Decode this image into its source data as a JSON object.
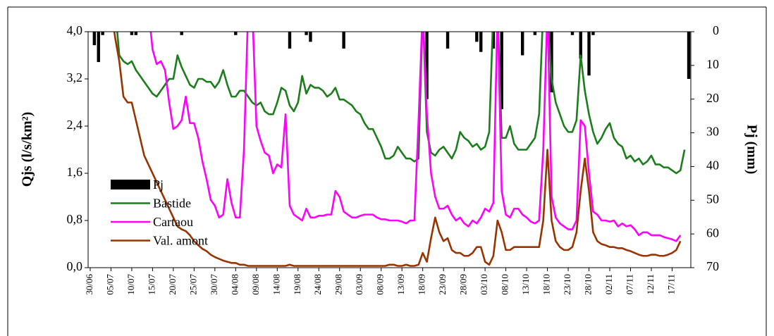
{
  "chart_data": {
    "type": "line",
    "y_label": "Qjs (l/s/km²)",
    "y2_label": "Pj (mm)",
    "categories": [
      "30/06",
      null,
      null,
      null,
      null,
      "05/07",
      null,
      null,
      null,
      null,
      "10/07",
      null,
      null,
      null,
      null,
      "15/07",
      null,
      null,
      null,
      null,
      "20/07",
      null,
      null,
      null,
      null,
      "25/07",
      null,
      null,
      null,
      null,
      "30/07",
      null,
      null,
      null,
      null,
      "04/08",
      null,
      null,
      null,
      null,
      "09/08",
      null,
      null,
      null,
      null,
      "14/08",
      null,
      null,
      null,
      null,
      "19/08",
      null,
      null,
      null,
      null,
      "24/08",
      null,
      null,
      null,
      null,
      "29/08",
      null,
      null,
      null,
      null,
      "03/09",
      null,
      null,
      null,
      null,
      "08/09",
      null,
      null,
      null,
      null,
      "13/09",
      null,
      null,
      null,
      null,
      "18/09",
      null,
      null,
      null,
      null,
      "23/09",
      null,
      null,
      null,
      null,
      "28/09",
      null,
      null,
      null,
      null,
      "03/10",
      null,
      null,
      null,
      null,
      "08/10",
      null,
      null,
      null,
      null,
      "13/10",
      null,
      null,
      null,
      null,
      "18/10",
      null,
      null,
      null,
      null,
      "23/10",
      null,
      null,
      null,
      null,
      "28/10",
      null,
      null,
      null,
      null,
      "02/11",
      null,
      null,
      null,
      null,
      "07/11",
      null,
      null,
      null,
      null,
      "12/11",
      null,
      null,
      null,
      null,
      "17/11",
      null,
      null,
      null,
      null
    ],
    "series": [
      {
        "name": "Pj",
        "type": "bar",
        "axis": "y2",
        "color": "#000000",
        "values": [
          0,
          4,
          9,
          1,
          0,
          0,
          0,
          0,
          0,
          0,
          1,
          1,
          0,
          0,
          0,
          0,
          0,
          0,
          0,
          0,
          0,
          0,
          1,
          0,
          0,
          0,
          0,
          0,
          0,
          0,
          0,
          0,
          0,
          0,
          0,
          1,
          0,
          0,
          0,
          0,
          0,
          0,
          0,
          0,
          0,
          0,
          0,
          0,
          5,
          0,
          0,
          0,
          1,
          3,
          0,
          0,
          0,
          0,
          0,
          0,
          0,
          5,
          0,
          0,
          0,
          0,
          0,
          0,
          0,
          0,
          0,
          0,
          0,
          0,
          0,
          0,
          0,
          0,
          0,
          0,
          0,
          20,
          0,
          0,
          0,
          0,
          5,
          0,
          0,
          0,
          0,
          0,
          0,
          3,
          6,
          0,
          0,
          5,
          0,
          23,
          0,
          0,
          0,
          0,
          7,
          0,
          0,
          1,
          0,
          0,
          0,
          18,
          0,
          0,
          0,
          0,
          1,
          0,
          8,
          0,
          13,
          1,
          0,
          0,
          0,
          0,
          0,
          0,
          0,
          0,
          0,
          0,
          0,
          0,
          0,
          0,
          0,
          0,
          0,
          0,
          0,
          0,
          0,
          0,
          14
        ]
      },
      {
        "name": "Bastide",
        "type": "line",
        "color": "#1b7d1b",
        "values": [
          4.4,
          4.4,
          4.4,
          4.4,
          4.4,
          4.4,
          4.4,
          3.6,
          3.5,
          3.45,
          3.5,
          3.35,
          3.25,
          3.15,
          3.05,
          2.95,
          2.9,
          3.0,
          3.1,
          3.2,
          3.2,
          3.6,
          3.4,
          3.25,
          3.1,
          3.05,
          3.2,
          3.2,
          3.15,
          3.15,
          3.05,
          3.15,
          3.35,
          3.1,
          2.9,
          2.9,
          3.0,
          3.0,
          2.9,
          2.8,
          2.75,
          2.8,
          2.65,
          2.6,
          2.6,
          2.8,
          3.05,
          3.0,
          2.75,
          2.65,
          2.8,
          3.25,
          2.95,
          3.1,
          3.05,
          3.05,
          3.0,
          2.9,
          2.95,
          3.05,
          2.85,
          2.85,
          2.8,
          2.75,
          2.65,
          2.6,
          2.45,
          2.35,
          2.35,
          2.2,
          2.05,
          1.85,
          1.85,
          1.9,
          2.05,
          1.95,
          1.85,
          1.85,
          1.8,
          1.85,
          4.4,
          2.3,
          1.95,
          1.9,
          2.0,
          2.05,
          1.95,
          1.85,
          2.0,
          2.3,
          2.2,
          2.15,
          2.05,
          2.1,
          2.0,
          2.05,
          2.3,
          4.4,
          4.4,
          2.2,
          2.2,
          2.4,
          2.1,
          2.0,
          2.0,
          2.0,
          2.1,
          2.2,
          2.6,
          4.4,
          4.4,
          3.2,
          2.8,
          2.6,
          2.4,
          2.3,
          2.3,
          2.5,
          3.6,
          3.0,
          2.6,
          2.3,
          2.1,
          2.2,
          2.35,
          2.45,
          2.2,
          2.1,
          2.05,
          1.85,
          1.9,
          1.8,
          1.85,
          1.75,
          1.8,
          1.9,
          1.75,
          1.75,
          1.7,
          1.7,
          1.65,
          1.6,
          1.65,
          2.0,
          null
        ]
      },
      {
        "name": "Cartaou",
        "type": "line",
        "color": "#ff00ff",
        "values": [
          4.4,
          4.4,
          4.4,
          4.4,
          4.4,
          4.4,
          4.4,
          4.4,
          4.4,
          4.4,
          4.4,
          4.4,
          4.4,
          4.4,
          4.4,
          3.7,
          3.45,
          3.5,
          3.35,
          2.8,
          2.35,
          2.4,
          2.5,
          2.9,
          2.45,
          2.45,
          2.2,
          1.8,
          1.5,
          1.15,
          1.05,
          0.85,
          0.9,
          1.5,
          1.1,
          0.85,
          0.85,
          2.0,
          4.4,
          4.4,
          2.4,
          2.15,
          1.95,
          1.9,
          1.6,
          1.75,
          1.7,
          2.6,
          1.05,
          0.9,
          0.85,
          0.8,
          1.0,
          0.85,
          0.85,
          0.88,
          0.88,
          0.9,
          0.9,
          1.3,
          1.2,
          0.95,
          0.9,
          0.85,
          0.85,
          0.88,
          0.9,
          0.9,
          0.9,
          0.85,
          0.82,
          0.82,
          0.8,
          0.8,
          0.8,
          0.78,
          0.75,
          0.8,
          0.8,
          2.5,
          4.4,
          2.6,
          1.6,
          1.2,
          1.0,
          1.0,
          1.05,
          0.9,
          0.8,
          0.85,
          0.75,
          0.7,
          0.8,
          0.75,
          0.85,
          1.0,
          0.95,
          1.1,
          4.4,
          1.3,
          0.9,
          0.85,
          1.0,
          1.0,
          0.9,
          0.85,
          0.78,
          0.75,
          0.8,
          2.0,
          4.4,
          1.2,
          0.85,
          0.75,
          0.7,
          0.65,
          0.65,
          0.8,
          2.5,
          2.4,
          1.6,
          0.95,
          0.9,
          0.8,
          0.8,
          0.78,
          0.8,
          0.7,
          0.75,
          0.7,
          0.72,
          0.65,
          0.55,
          0.6,
          0.6,
          0.55,
          0.55,
          0.55,
          0.52,
          0.5,
          0.48,
          0.45,
          0.55,
          null,
          null
        ]
      },
      {
        "name": "Val. amont",
        "type": "line",
        "color": "#993300",
        "values": [
          4.4,
          4.4,
          4.4,
          4.4,
          4.4,
          4.4,
          3.9,
          3.5,
          2.9,
          2.8,
          2.8,
          2.5,
          2.2,
          1.9,
          1.75,
          1.6,
          1.45,
          1.3,
          1.15,
          1.0,
          0.85,
          0.7,
          0.65,
          0.62,
          0.55,
          0.45,
          0.38,
          0.32,
          0.28,
          0.22,
          0.18,
          0.15,
          0.12,
          0.1,
          0.08,
          0.08,
          0.05,
          0.05,
          0.03,
          0.03,
          0.03,
          0.03,
          0.03,
          0.03,
          0.03,
          0.03,
          0.03,
          0.03,
          0.05,
          0.03,
          0.03,
          0.03,
          0.03,
          0.03,
          0.03,
          0.03,
          0.03,
          0.03,
          0.03,
          0.03,
          0.03,
          0.03,
          0.03,
          0.03,
          0.03,
          0.03,
          0.03,
          0.03,
          0.03,
          0.03,
          0.03,
          0.03,
          0.05,
          0.05,
          0.03,
          0.03,
          0.05,
          0.03,
          0.03,
          0.05,
          0.25,
          0.1,
          0.5,
          0.85,
          0.6,
          0.45,
          0.5,
          0.3,
          0.25,
          0.25,
          0.2,
          0.2,
          0.25,
          0.35,
          0.35,
          0.1,
          0.05,
          0.2,
          0.8,
          0.6,
          0.3,
          0.3,
          0.35,
          0.35,
          0.35,
          0.35,
          0.35,
          0.35,
          0.35,
          0.8,
          2.0,
          0.8,
          0.45,
          0.35,
          0.3,
          0.3,
          0.35,
          0.6,
          1.3,
          1.85,
          1.3,
          0.6,
          0.45,
          0.4,
          0.38,
          0.35,
          0.35,
          0.33,
          0.33,
          0.3,
          0.28,
          0.25,
          0.22,
          0.2,
          0.2,
          0.22,
          0.22,
          0.2,
          0.2,
          0.22,
          0.25,
          0.3,
          0.45,
          null,
          null
        ]
      }
    ],
    "ylim": [
      0,
      4
    ],
    "yticks": [
      {
        "value": 0,
        "label": "0,0"
      },
      {
        "value": 0.8,
        "label": "0,8"
      },
      {
        "value": 1.6,
        "label": "1,6"
      },
      {
        "value": 2.4,
        "label": "2,4"
      },
      {
        "value": 3.2,
        "label": "3,2"
      },
      {
        "value": 4,
        "label": "4,0"
      }
    ],
    "y2lim": [
      70,
      0
    ],
    "y2ticks": [
      0,
      10,
      20,
      30,
      40,
      50,
      60,
      70
    ],
    "legend": "lower left",
    "grid": false
  }
}
